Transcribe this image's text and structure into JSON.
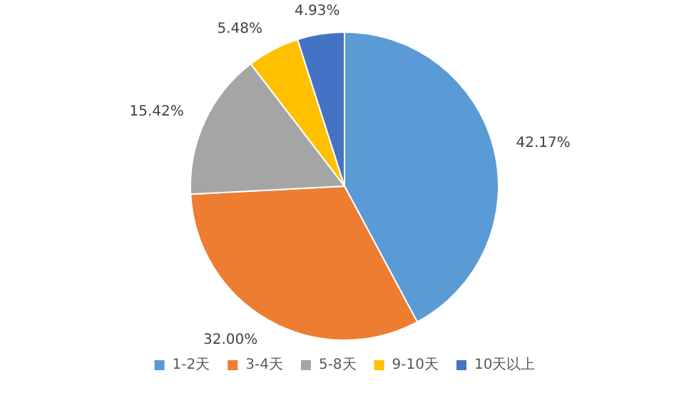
{
  "chart_data": {
    "type": "pie",
    "categories": [
      "1-2天",
      "3-4天",
      "5-8天",
      "9-10天",
      "10天以上"
    ],
    "values": [
      42.17,
      32.0,
      15.42,
      5.48,
      4.93
    ],
    "colors": [
      "#5b9bd5",
      "#ed7d31",
      "#a5a5a5",
      "#ffc000",
      "#4472c4"
    ],
    "value_labels": [
      "42.17%",
      "32.00%",
      "15.42%",
      "5.48%",
      "4.93%"
    ],
    "legend": "bottom"
  }
}
